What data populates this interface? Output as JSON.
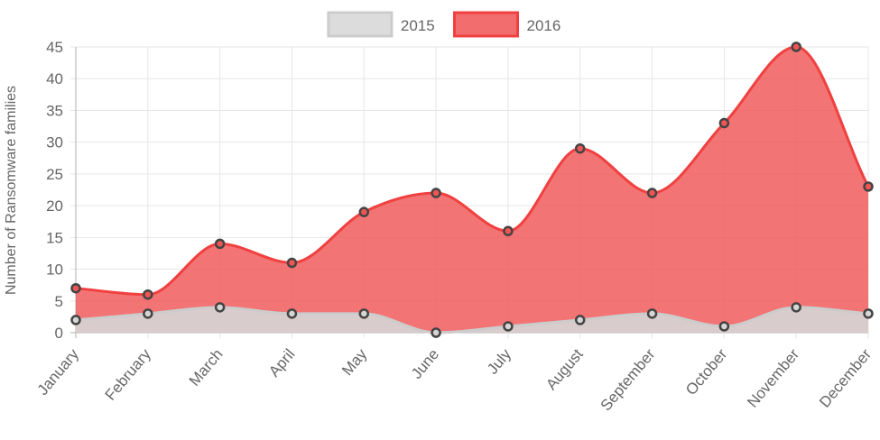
{
  "chart_data": {
    "type": "area",
    "categories": [
      "January",
      "February",
      "March",
      "April",
      "May",
      "June",
      "July",
      "August",
      "September",
      "October",
      "November",
      "December"
    ],
    "series": [
      {
        "name": "2015",
        "values": [
          2,
          3,
          4,
          3,
          3,
          0,
          1,
          2,
          3,
          1,
          4,
          3
        ],
        "fill": "#d6d6d6",
        "stroke": "#cccccc"
      },
      {
        "name": "2016",
        "values": [
          7,
          6,
          14,
          11,
          19,
          22,
          16,
          29,
          22,
          33,
          45,
          23
        ],
        "fill": "#f05555",
        "stroke": "#f04040"
      }
    ],
    "ylabel": "Number of Ransomware families",
    "xlabel": "",
    "ylim": [
      0,
      45
    ],
    "yticks": [
      0,
      5,
      10,
      15,
      20,
      25,
      30,
      35,
      40,
      45
    ],
    "grid": true,
    "legend_position": "top-center",
    "point_color": "#444444"
  }
}
